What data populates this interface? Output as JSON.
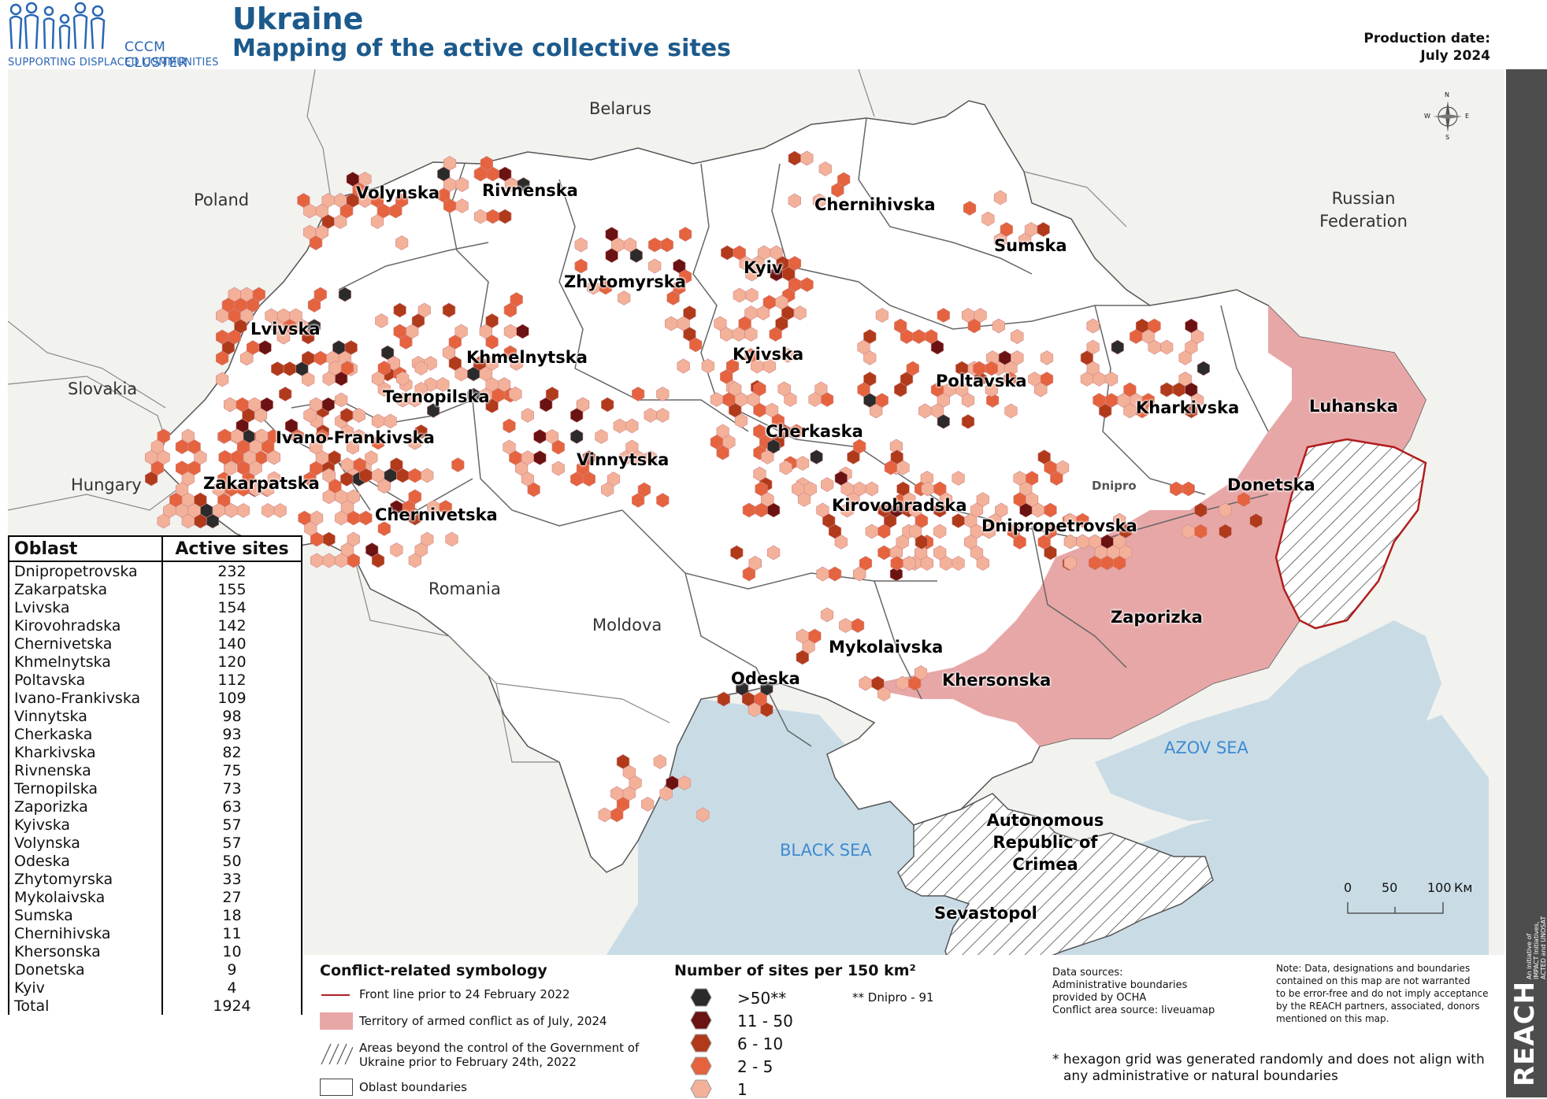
{
  "header": {
    "logo_line1": "CCCM CLUSTER",
    "logo_line2": "SUPPORTING DISPLACED COMMUNITIES",
    "title": "Ukraine",
    "subtitle": "Mapping of the active collective sites",
    "production_label": "Production date:",
    "production_date": "July 2024"
  },
  "map": {
    "oblast_labels": [
      "Volynska",
      "Rivnenska",
      "Chernihivska",
      "Sumska",
      "Zhytomyrska",
      "Kyiv",
      "Lvivska",
      "Khmelnytska",
      "Kyivska",
      "Poltavska",
      "Kharkivska",
      "Luhanska",
      "Ternopilska",
      "Ivano-Frankivska",
      "Cherkaska",
      "Vinnytska",
      "Zakarpatska",
      "Chernivetska",
      "Kirovohradska",
      "Donetska",
      "Dnipropetrovska",
      "Zaporizka",
      "Mykolaivska",
      "Odeska",
      "Khersonska",
      "Autonomous Republic of Crimea",
      "Sevastopol"
    ],
    "city_label": "Dnipro",
    "countries": [
      "Belarus",
      "Poland",
      "Russian Federation",
      "Slovakia",
      "Hungary",
      "Romania",
      "Moldova"
    ],
    "seas": [
      "BLACK SEA",
      "AZOV SEA"
    ],
    "north_arrow": {
      "n": "N",
      "s": "S",
      "e": "E",
      "w": "W"
    },
    "scale": {
      "ticks": [
        "0",
        "50",
        "100"
      ],
      "unit": "Км"
    }
  },
  "table": {
    "headers": [
      "Oblast",
      "Active sites"
    ],
    "rows": [
      [
        "Dnipropetrovska",
        "232"
      ],
      [
        "Zakarpatska",
        "155"
      ],
      [
        "Lvivska",
        "154"
      ],
      [
        "Kirovohradska",
        "142"
      ],
      [
        "Chernivetska",
        "140"
      ],
      [
        "Khmelnytska",
        "120"
      ],
      [
        "Poltavska",
        "112"
      ],
      [
        "Ivano-Frankivska",
        "109"
      ],
      [
        "Vinnytska",
        "98"
      ],
      [
        "Cherkaska",
        "93"
      ],
      [
        "Kharkivska",
        "82"
      ],
      [
        "Rivnenska",
        "75"
      ],
      [
        "Ternopilska",
        "73"
      ],
      [
        "Zaporizka",
        "63"
      ],
      [
        "Kyivska",
        "57"
      ],
      [
        "Volynska",
        "57"
      ],
      [
        "Odeska",
        "50"
      ],
      [
        "Zhytomyrska",
        "33"
      ],
      [
        "Mykolaivska",
        "27"
      ],
      [
        "Sumska",
        "18"
      ],
      [
        "Chernihivska",
        "11"
      ],
      [
        "Khersonska",
        "10"
      ],
      [
        "Donetska",
        "9"
      ],
      [
        "Kyiv",
        "4"
      ],
      [
        "Total",
        "1924"
      ]
    ]
  },
  "legend": {
    "conflict_title": "Conflict-related symbology",
    "frontline": "Front line prior to 24 February 2022",
    "territory": "Territory of armed conflict as of July, 2024",
    "beyond_control_1": "Areas beyond the control of the Government of",
    "beyond_control_2": "Ukraine prior to February 24th, 2022",
    "oblast_boundaries": "Oblast boundaries",
    "sites_title": "Number of sites per 150 km²",
    "classes": [
      {
        "label": ">50**",
        "color": "#2b2b2b"
      },
      {
        "label": "11 - 50",
        "color": "#6b1212"
      },
      {
        "label": "6 - 10",
        "color": "#b03a1a"
      },
      {
        "label": "2 - 5",
        "color": "#e5633e"
      },
      {
        "label": "1",
        "color": "#f4b19a"
      }
    ],
    "dnipro_note": "** Dnipro - 91"
  },
  "sources": {
    "line1": "Data sources:",
    "line2": "Administrative boundaries",
    "line3": "provided by OCHA",
    "line4": "Conflict area source: liveuamap"
  },
  "disclaimer": {
    "line1": "Note: Data, designations and boundaries",
    "line2": "contained on this map are not warranted",
    "line3": "to be error-free and do not imply acceptance",
    "line4": "by the REACH partners, associated, donors",
    "line5": "mentioned on this map."
  },
  "hex_note": {
    "line1": "* hexagon grid was generated randomly and does not align with",
    "line2": "any administrative or natural boundaries"
  },
  "reach": {
    "brand": "REACH",
    "line1": "An initiative of",
    "line2": "IMPACT Initiatives,",
    "line3": "ACTED and UNOSAT"
  },
  "colors": {
    "title": "#1c5a8c",
    "sea": "#c9dce6",
    "land_outside": "#f2f2ef",
    "conflict": "#e8a7a7",
    "frontline": "#b01e1e"
  }
}
